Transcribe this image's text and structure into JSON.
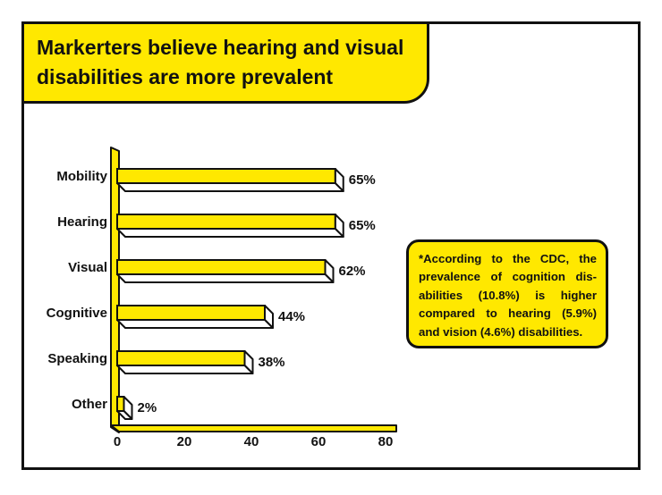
{
  "title": "Markerters believe hearing and visual disabilities are more prevalent",
  "note": "*According to the CDC, the prevalence of cognition dis-abilities (10.8%) is higher compared to hearing (5.9%) and vision (4.6%) disabilities.",
  "colors": {
    "bar": "#ffe800",
    "outline": "#111111",
    "side": "#ffffff"
  },
  "chart_data": {
    "type": "bar",
    "orientation": "horizontal",
    "categories": [
      "Mobility",
      "Hearing",
      "Visual",
      "Cognitive",
      "Speaking",
      "Other"
    ],
    "values": [
      65,
      65,
      62,
      44,
      38,
      2
    ],
    "data_labels": [
      "65%",
      "65%",
      "62%",
      "44%",
      "38%",
      "2%"
    ],
    "x_ticks": [
      0,
      20,
      40,
      60,
      80
    ],
    "xlim": [
      0,
      80
    ],
    "grid": false
  }
}
